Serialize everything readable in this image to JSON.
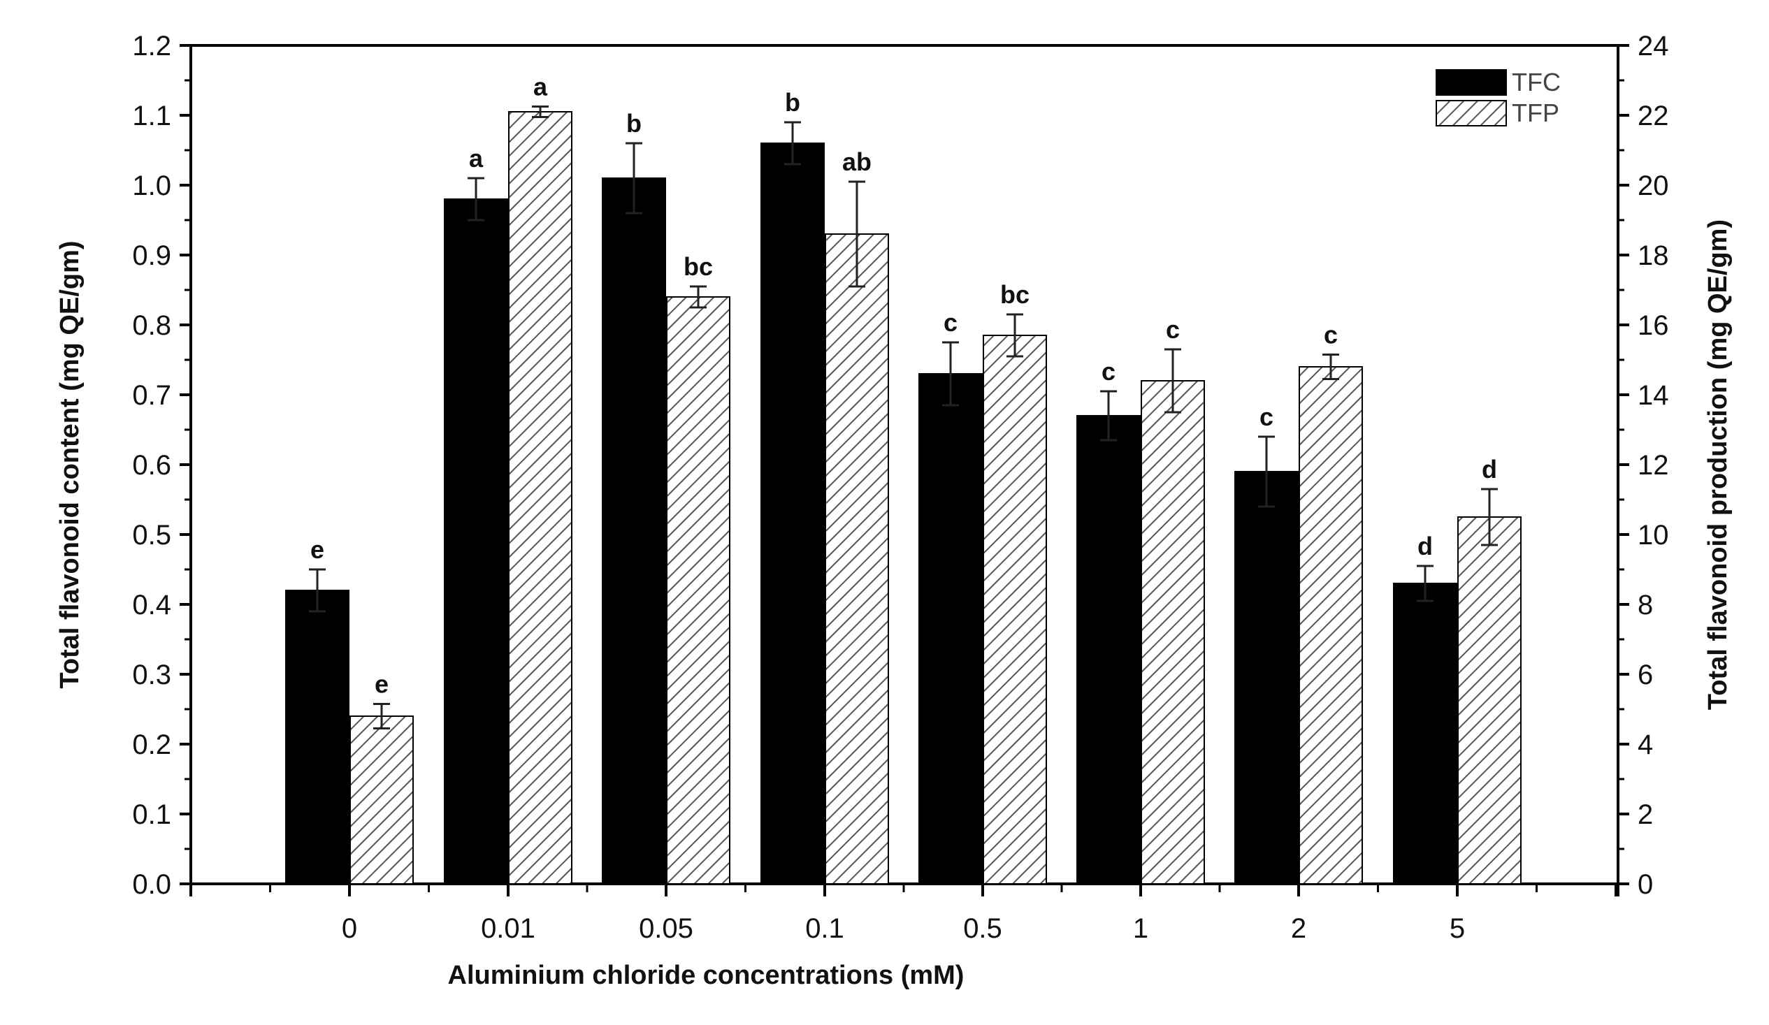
{
  "chart_data": {
    "type": "bar",
    "title": "",
    "xlabel": "Aluminium chloride concentrations (mM)",
    "ylabel": "Total flavonoid content (mg QE/gm)",
    "y2label": "Total flavonoid production (mg QE/gm)",
    "categories": [
      "0",
      "0.01",
      "0.05",
      "0.1",
      "0.5",
      "1",
      "2",
      "5"
    ],
    "ylim": [
      0,
      1.2
    ],
    "y2lim": [
      0,
      24
    ],
    "yticks": [
      "0.0",
      "0.1",
      "0.2",
      "0.3",
      "0.4",
      "0.5",
      "0.6",
      "0.7",
      "0.8",
      "0.9",
      "1.0",
      "1.1",
      "1.2"
    ],
    "y2ticks": [
      "0",
      "2",
      "4",
      "6",
      "8",
      "10",
      "12",
      "14",
      "16",
      "18",
      "20",
      "22",
      "24"
    ],
    "legend_position": "top-right",
    "series": [
      {
        "name": "TFC",
        "axis": "left",
        "fill": "solid",
        "color": "#000000",
        "values": [
          0.42,
          0.98,
          1.01,
          1.06,
          0.73,
          0.67,
          0.59,
          0.43
        ],
        "errors": [
          0.03,
          0.03,
          0.05,
          0.03,
          0.045,
          0.035,
          0.05,
          0.025
        ],
        "labels": [
          "e",
          "a",
          "b",
          "b",
          "c",
          "c",
          "c",
          "d"
        ]
      },
      {
        "name": "TFP",
        "axis": "right",
        "fill": "hatched",
        "color": "#555555",
        "values": [
          4.8,
          22.1,
          16.8,
          18.6,
          15.7,
          14.4,
          14.8,
          10.5
        ],
        "errors": [
          0.35,
          0.15,
          0.3,
          1.5,
          0.6,
          0.9,
          0.35,
          0.8
        ],
        "labels": [
          "e",
          "a",
          "bc",
          "ab",
          "bc",
          "c",
          "c",
          "d"
        ]
      }
    ]
  }
}
